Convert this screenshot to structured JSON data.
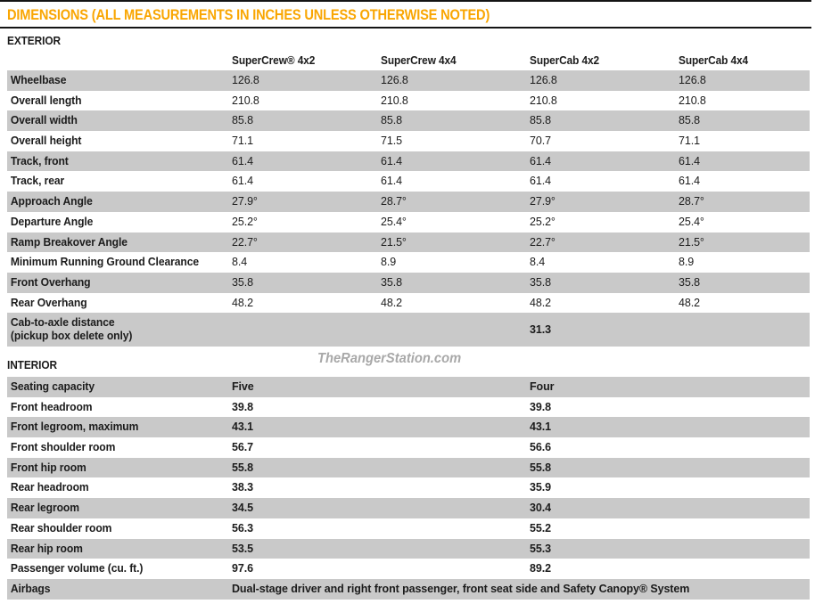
{
  "title": "DIMENSIONS (ALL MEASUREMENTS IN INCHES UNLESS OTHERWISE NOTED)",
  "watermark": "TheRangerStation.com",
  "colors": {
    "accent_orange": "#f9a602",
    "row_gray": "#c9c9c9",
    "rule_black": "#141414",
    "text_ink": "#1c1c1c",
    "watermark_gray": "#a8a8a8"
  },
  "exterior": {
    "heading": "EXTERIOR",
    "columns": [
      "SuperCrew® 4x2",
      "SuperCrew 4x4",
      "SuperCab 4x2",
      "SuperCab 4x4"
    ],
    "rows": [
      {
        "label": "Wheelbase",
        "values": [
          "126.8",
          "126.8",
          "126.8",
          "126.8"
        ]
      },
      {
        "label": "Overall length",
        "values": [
          "210.8",
          "210.8",
          "210.8",
          "210.8"
        ]
      },
      {
        "label": "Overall width",
        "values": [
          "85.8",
          "85.8",
          "85.8",
          "85.8"
        ]
      },
      {
        "label": "Overall height",
        "values": [
          "71.1",
          "71.5",
          "70.7",
          "71.1"
        ]
      },
      {
        "label": "Track, front",
        "values": [
          "61.4",
          "61.4",
          "61.4",
          "61.4"
        ]
      },
      {
        "label": "Track, rear",
        "values": [
          "61.4",
          "61.4",
          "61.4",
          "61.4"
        ]
      },
      {
        "label": "Approach Angle",
        "values": [
          "27.9°",
          "28.7°",
          "27.9°",
          "28.7°"
        ]
      },
      {
        "label": "Departure Angle",
        "values": [
          "25.2°",
          "25.4°",
          "25.2°",
          "25.4°"
        ]
      },
      {
        "label": "Ramp Breakover Angle",
        "values": [
          "22.7°",
          "21.5°",
          "22.7°",
          "21.5°"
        ]
      },
      {
        "label": "Minimum Running Ground Clearance",
        "values": [
          "8.4",
          "8.9",
          "8.4",
          "8.9"
        ]
      },
      {
        "label": "Front Overhang",
        "values": [
          "35.8",
          "35.8",
          "35.8",
          "35.8"
        ]
      },
      {
        "label": "Rear Overhang",
        "values": [
          "48.2",
          "48.2",
          "48.2",
          "48.2"
        ]
      },
      {
        "label": "Cab-to-axle distance",
        "label2": "(pickup box delete only)",
        "values": [
          "",
          "",
          "31.3",
          ""
        ]
      }
    ]
  },
  "interior": {
    "heading": "INTERIOR",
    "rows": [
      {
        "label": "Seating capacity",
        "values": [
          "Five",
          "",
          "Four",
          ""
        ]
      },
      {
        "label": "Front headroom",
        "values": [
          "39.8",
          "",
          "39.8",
          ""
        ]
      },
      {
        "label": "Front legroom, maximum",
        "values": [
          "43.1",
          "",
          "43.1",
          ""
        ]
      },
      {
        "label": "Front shoulder room",
        "values": [
          "56.7",
          "",
          "56.6",
          ""
        ]
      },
      {
        "label": "Front hip room",
        "values": [
          "55.8",
          "",
          "55.8",
          ""
        ]
      },
      {
        "label": "Rear headroom",
        "values": [
          "38.3",
          "",
          "35.9",
          ""
        ]
      },
      {
        "label": "Rear legroom",
        "values": [
          "34.5",
          "",
          "30.4",
          ""
        ]
      },
      {
        "label": "Rear shoulder room",
        "values": [
          "56.3",
          "",
          "55.2",
          ""
        ]
      },
      {
        "label": "Rear hip room",
        "values": [
          "53.5",
          "",
          "55.3",
          ""
        ]
      },
      {
        "label": "Passenger volume (cu. ft.)",
        "values": [
          "97.6",
          "",
          "89.2",
          ""
        ]
      },
      {
        "label": "Airbags",
        "span_value": "Dual-stage driver and right front passenger, front seat side and Safety Canopy® System"
      }
    ]
  }
}
